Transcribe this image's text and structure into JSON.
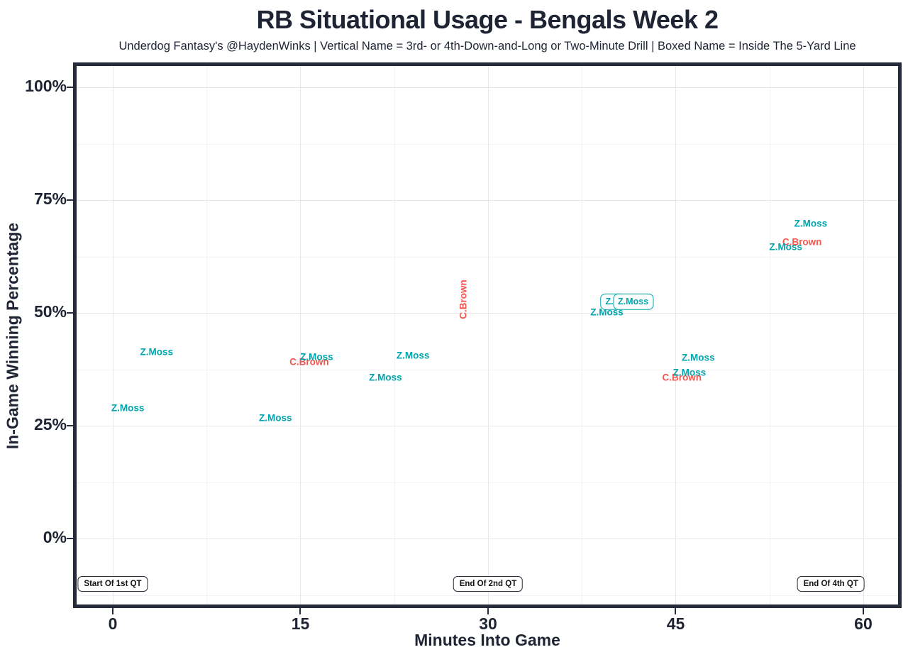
{
  "title": "RB Situational Usage - Bengals Week 2",
  "subtitle": "Underdog Fantasy's @HaydenWinks | Vertical Name = 3rd- or 4th-Down-and-Long or Two-Minute Drill | Boxed Name = Inside The 5-Yard Line",
  "colors": {
    "ink": "#1e2433",
    "panel_border": "#252b3a",
    "teal": "#00a5ad",
    "red": "#f4564e",
    "grid_major": "#e7e7ea",
    "grid_minor": "#f3f3f5"
  },
  "chart_data": {
    "type": "scatter",
    "title": "RB Situational Usage - Bengals Week 2",
    "subtitle": "Underdog Fantasy's @HaydenWinks | Vertical Name = 3rd- or 4th-Down-and-Long or Two-Minute Drill | Boxed Name = Inside The 5-Yard Line",
    "xlabel": "Minutes Into Game",
    "ylabel": "In-Game Winning Percentage",
    "xlim": [
      -3,
      63
    ],
    "ylim": [
      -14.5,
      104.5
    ],
    "x_ticks": [
      0,
      15,
      30,
      45,
      60
    ],
    "x_tick_labels": [
      "0",
      "15",
      "30",
      "45",
      "60"
    ],
    "y_ticks": [
      0,
      25,
      50,
      75,
      100
    ],
    "y_tick_labels": [
      "0%",
      "25%",
      "50%",
      "75%",
      "100%"
    ],
    "grid": true,
    "legend": false,
    "point_style": "text-label",
    "series": [
      {
        "name": "Z.Moss",
        "color": "#00a5ad",
        "color_key": "teal",
        "points": [
          {
            "minute": 1.2,
            "win_pct": 29.0,
            "display": "Z.Moss",
            "vertical": false,
            "boxed": false
          },
          {
            "minute": 3.5,
            "win_pct": 41.3,
            "display": "Z.Moss",
            "vertical": false,
            "boxed": false
          },
          {
            "minute": 13.0,
            "win_pct": 26.7,
            "display": "Z.Moss",
            "vertical": false,
            "boxed": false
          },
          {
            "minute": 16.3,
            "win_pct": 40.3,
            "display": "Z.Moss",
            "vertical": false,
            "boxed": false
          },
          {
            "minute": 21.8,
            "win_pct": 35.7,
            "display": "Z.Moss",
            "vertical": false,
            "boxed": false
          },
          {
            "minute": 24.0,
            "win_pct": 40.6,
            "display": "Z.Moss",
            "vertical": false,
            "boxed": false
          },
          {
            "minute": 39.5,
            "win_pct": 50.2,
            "display": "Z.Moss",
            "vertical": false,
            "boxed": false
          },
          {
            "minute": 40.0,
            "win_pct": 52.5,
            "display": "Z.M",
            "vertical": false,
            "boxed": true
          },
          {
            "minute": 41.6,
            "win_pct": 52.5,
            "display": "Z.Moss",
            "vertical": false,
            "boxed": true
          },
          {
            "minute": 46.8,
            "win_pct": 40.1,
            "display": "Z.Moss",
            "vertical": false,
            "boxed": false
          },
          {
            "minute": 46.1,
            "win_pct": 36.8,
            "display": "Z.Moss",
            "vertical": false,
            "boxed": false
          },
          {
            "minute": 53.8,
            "win_pct": 64.6,
            "display": "Z.Moss",
            "vertical": false,
            "boxed": false
          },
          {
            "minute": 55.8,
            "win_pct": 69.8,
            "display": "Z.Moss",
            "vertical": false,
            "boxed": false
          }
        ]
      },
      {
        "name": "C.Brown",
        "color": "#f4564e",
        "color_key": "red",
        "points": [
          {
            "minute": 15.7,
            "win_pct": 39.2,
            "display": "C.Brown",
            "vertical": false,
            "boxed": false
          },
          {
            "minute": 28.0,
            "win_pct": 53.0,
            "display": "C.Brown",
            "vertical": true,
            "boxed": false
          },
          {
            "minute": 45.5,
            "win_pct": 35.7,
            "display": "C.Brown",
            "vertical": false,
            "boxed": false
          },
          {
            "minute": 55.1,
            "win_pct": 65.7,
            "display": "C.Brown",
            "vertical": false,
            "boxed": false
          }
        ]
      }
    ],
    "annotations": [
      {
        "label": "Start Of 1st QT",
        "minute": 0,
        "win_pct": -10,
        "align": "center"
      },
      {
        "label": "End Of 2nd QT",
        "minute": 30,
        "win_pct": -10,
        "align": "center"
      },
      {
        "label": "End Of 4th QT",
        "minute": 60,
        "win_pct": -10,
        "align": "right-edge"
      }
    ]
  }
}
